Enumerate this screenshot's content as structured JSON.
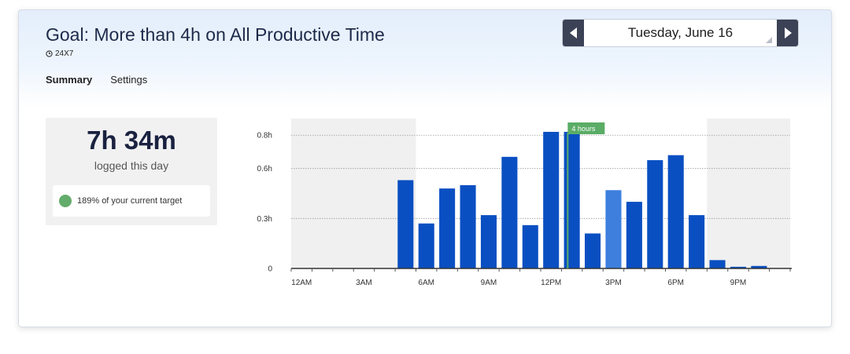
{
  "goal": {
    "title": "Goal: More than 4h on All Productive Time",
    "schedule": "24X7",
    "schedule_icon": "clock-icon"
  },
  "tabs": [
    {
      "label": "Summary",
      "active": true
    },
    {
      "label": "Settings",
      "active": false
    }
  ],
  "date_picker": {
    "date": "Tuesday, June 16",
    "prev_icon": "triangle-left-icon",
    "next_icon": "triangle-right-icon"
  },
  "summary": {
    "total_time": "7h 34m",
    "caption": "logged this day",
    "target_text": "189% of your current target",
    "target_status_color": "#63ac6b"
  },
  "chart_data": {
    "type": "bar",
    "x_tick_labels": [
      "12AM",
      "3AM",
      "6AM",
      "9AM",
      "12PM",
      "3PM",
      "6PM",
      "9PM"
    ],
    "y_tick_labels": [
      "0",
      "0.3h",
      "0.6h",
      "0.8h"
    ],
    "y_tick_values": [
      0,
      0.3,
      0.6,
      0.8
    ],
    "hours": [
      0,
      1,
      2,
      3,
      4,
      5,
      6,
      7,
      8,
      9,
      10,
      11,
      12,
      13,
      14,
      15,
      16,
      17,
      18,
      19,
      20,
      21,
      22,
      23
    ],
    "values": [
      0,
      0,
      0,
      0,
      0,
      0.53,
      0.27,
      0.48,
      0.5,
      0.32,
      0.67,
      0.26,
      0.82,
      0.82,
      0.21,
      0.47,
      0.4,
      0.65,
      0.68,
      0.32,
      0.05,
      0.01,
      0.015,
      0
    ],
    "highlight_hour": 15,
    "ylim": [
      0,
      0.9
    ],
    "shaded_hours": [
      [
        0,
        6
      ],
      [
        20,
        24
      ]
    ],
    "goal_marker": {
      "label": "4 hours",
      "hour": 13.3
    },
    "colors": {
      "bar": "#0a4fc2",
      "highlight": "#3e7fde",
      "marker": "#5aac66",
      "shade": "#f0f0f0"
    }
  }
}
